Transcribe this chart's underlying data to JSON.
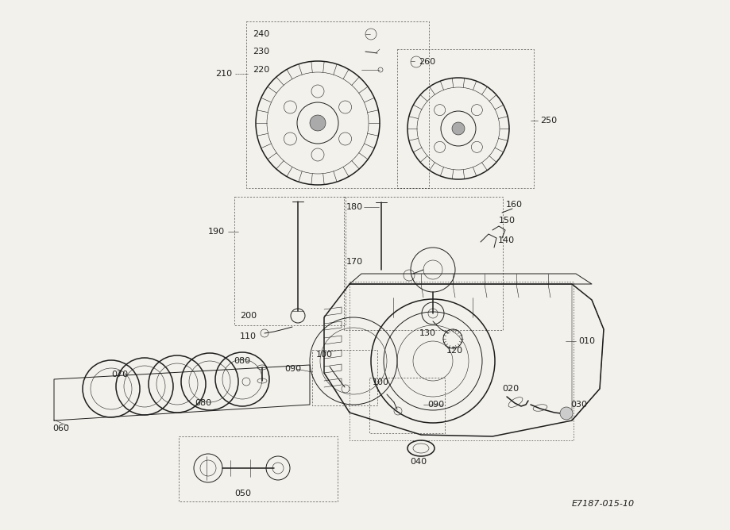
{
  "bg_color": "#f2f1eb",
  "line_color": "#1e1e1e",
  "diagram_code": "E7187-015-10",
  "fig_width": 9.2,
  "fig_height": 6.68,
  "dpi": 100
}
